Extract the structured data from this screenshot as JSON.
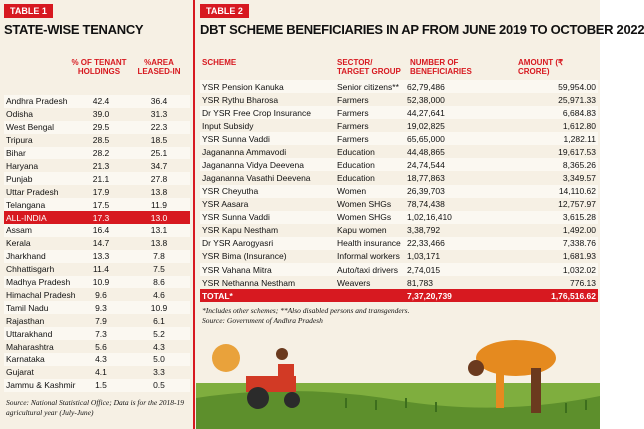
{
  "table1": {
    "badge": "TABLE 1",
    "title": "STATE-WISE TENANCY",
    "header": [
      "% OF TENANT HOLDINGS",
      "%AREA LEASED-IN"
    ],
    "rows": [
      [
        "Andhra Pradesh",
        "42.4",
        "36.4"
      ],
      [
        "Odisha",
        "39.0",
        "31.3"
      ],
      [
        "West Bengal",
        "29.5",
        "22.3"
      ],
      [
        "Tripura",
        "28.5",
        "18.5"
      ],
      [
        "Bihar",
        "28.2",
        "25.1"
      ],
      [
        "Haryana",
        "21.3",
        "34.7"
      ],
      [
        "Punjab",
        "21.1",
        "27.8"
      ],
      [
        "Uttar Pradesh",
        "17.9",
        "13.8"
      ],
      [
        "Telangana",
        "17.5",
        "11.9"
      ],
      [
        "ALL-INDIA",
        "17.3",
        "13.0"
      ],
      [
        "Assam",
        "16.4",
        "13.1"
      ],
      [
        "Kerala",
        "14.7",
        "13.8"
      ],
      [
        "Jharkhand",
        "13.3",
        "7.8"
      ],
      [
        "Chhattisgarh",
        "11.4",
        "7.5"
      ],
      [
        "Madhya Pradesh",
        "10.9",
        "8.6"
      ],
      [
        "Himachal Pradesh",
        "9.6",
        "4.6"
      ],
      [
        "Tamil Nadu",
        "9.3",
        "10.9"
      ],
      [
        "Rajasthan",
        "7.9",
        "6.1"
      ],
      [
        "Uttarakhand",
        "7.3",
        "5.2"
      ],
      [
        "Maharashtra",
        "5.6",
        "4.3"
      ],
      [
        "Karnataka",
        "4.3",
        "5.0"
      ],
      [
        "Gujarat",
        "4.1",
        "3.3"
      ],
      [
        "Jammu & Kashmir",
        "1.5",
        "0.5"
      ]
    ],
    "highlight_row": 9,
    "source": "Source: National Statistical Office; Data is for the 2018-19 agricultural year (July-June)"
  },
  "table2": {
    "badge": "TABLE 2",
    "title": "DBT SCHEME BENEFICIARIES IN AP FROM JUNE 2019 TO OCTOBER 2022",
    "header": [
      "SCHEME",
      "SECTOR/ TARGET GROUP",
      "NUMBER OF BENEFICIARIES",
      "AMOUNT (₹ CRORE)"
    ],
    "rows": [
      [
        "YSR Pension Kanuka",
        "Senior citizens**",
        "62,79,486",
        "59,954.00"
      ],
      [
        "YSR Rythu Bharosa",
        "Farmers",
        "52,38,000",
        "25,971.33"
      ],
      [
        "Dr YSR Free Crop Insurance",
        "Farmers",
        "44,27,641",
        "6,684.83"
      ],
      [
        "Input Subsidy",
        "Farmers",
        "19,02,825",
        "1,612.80"
      ],
      [
        "YSR Sunna Vaddi",
        "Farmers",
        "65,65,000",
        "1,282.11"
      ],
      [
        "Jagananna Ammavodi",
        "Education",
        "44,48,865",
        "19,617.53"
      ],
      [
        "Jagananna Vidya Deevena",
        "Education",
        "24,74,544",
        "8,365.26"
      ],
      [
        "Jagananna Vasathi Deevena",
        "Education",
        "18,77,863",
        "3,349.57"
      ],
      [
        "YSR Cheyutha",
        "Women",
        "26,39,703",
        "14,110.62"
      ],
      [
        "YSR Aasara",
        "Women SHGs",
        "78,74,438",
        "12,757.97"
      ],
      [
        "YSR Sunna Vaddi",
        "Women SHGs",
        "1,02,16,410",
        "3,615.28"
      ],
      [
        "YSR Kapu Nestham",
        "Kapu women",
        "3,38,792",
        "1,492.00"
      ],
      [
        "Dr YSR Aarogyasri",
        "Health insurance",
        "22,33,466",
        "7,338.76"
      ],
      [
        "YSR Bima (Insurance)",
        "Informal workers",
        "1,03,171",
        "1,681.93"
      ],
      [
        "YSR Vahana Mitra",
        "Auto/taxi drivers",
        "2,74,015",
        "1,032.02"
      ],
      [
        "YSR Nethanna Nestham",
        "Weavers",
        "81,783",
        "776.13"
      ]
    ],
    "total": {
      "label": "TOTAL*",
      "beneficiaries": "7,37,20,739",
      "amount": "1,76,516.62"
    },
    "notes": [
      "*Includes other schemes; **Also disabled persons and transgenders.",
      "Source: Government of Andhra Pradesh"
    ]
  }
}
